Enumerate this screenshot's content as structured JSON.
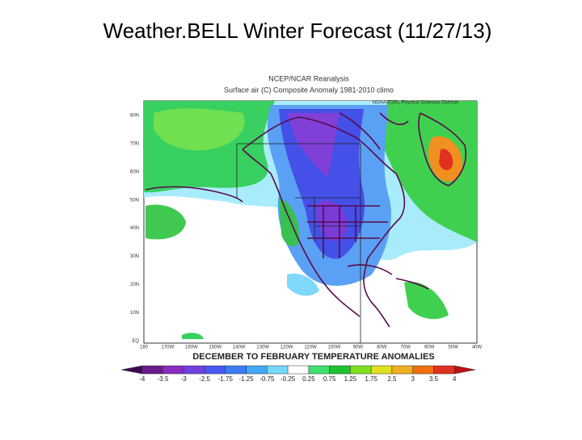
{
  "title": "Weather.BELL Winter Forecast (11/27/13)",
  "map": {
    "header": [
      "NCEP/NCAR Reanalysis",
      "Surface air (C) Composite Anomaly 1981-2010 climo"
    ],
    "source": "NOAA/ESRL Physical Sciences Division",
    "lat_labels": [
      "80N",
      "70N",
      "60N",
      "50N",
      "40N",
      "30N",
      "20N",
      "10N",
      "EQ"
    ],
    "lon_labels": [
      "180",
      "170W",
      "160W",
      "150W",
      "140W",
      "130W",
      "120W",
      "110W",
      "100W",
      "90W",
      "80W",
      "70W",
      "60W",
      "50W",
      "40W"
    ],
    "caption": "DECEMBER TO FEBRUARY TEMPERATURE ANOMALIES",
    "colorbar": {
      "labels": [
        "-4",
        "-3.5",
        "-3",
        "-2.5",
        "-1.75",
        "-1.25",
        "-0.75",
        "-0.25",
        "0.25",
        "0.75",
        "1.25",
        "1.75",
        "2.5",
        "3",
        "3.5",
        "4"
      ],
      "colors": [
        "#3c0a50",
        "#6a1a8a",
        "#8a2cbe",
        "#7040e0",
        "#4858f0",
        "#3c7cf4",
        "#40a8f8",
        "#78d8fc",
        "#ffffff",
        "#40e070",
        "#20c030",
        "#80e020",
        "#e0e020",
        "#f0b020",
        "#f07010",
        "#e03020",
        "#c01010"
      ]
    }
  }
}
